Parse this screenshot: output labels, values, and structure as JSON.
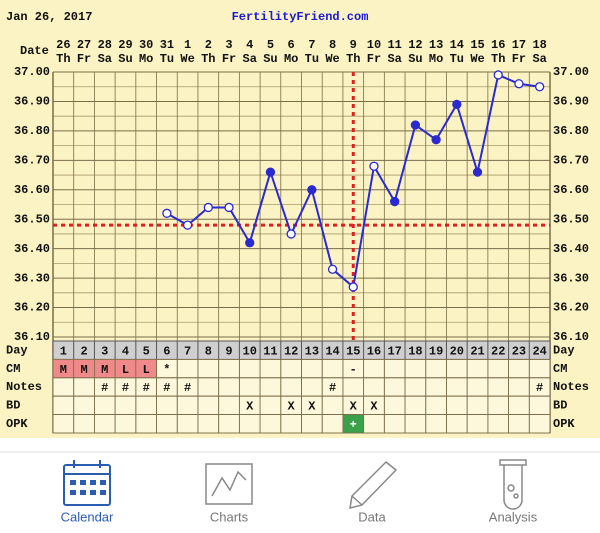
{
  "chart_data": {
    "type": "line",
    "title": "Jan 26, 2017",
    "subtitle": "FertilityFriend.com",
    "date_label": "Date",
    "day_label": "Day",
    "dates": [
      "26",
      "27",
      "28",
      "29",
      "30",
      "31",
      "1",
      "2",
      "3",
      "4",
      "5",
      "6",
      "7",
      "8",
      "9",
      "10",
      "11",
      "12",
      "13",
      "14",
      "15",
      "16",
      "17",
      "18"
    ],
    "weekdays": [
      "Th",
      "Fr",
      "Sa",
      "Su",
      "Mo",
      "Tu",
      "We",
      "Th",
      "Fr",
      "Sa",
      "Su",
      "Mo",
      "Tu",
      "We",
      "Th",
      "Fr",
      "Sa",
      "Su",
      "Mo",
      "Tu",
      "We",
      "Th",
      "Fr",
      "Sa"
    ],
    "categories": [
      1,
      2,
      3,
      4,
      5,
      6,
      7,
      8,
      9,
      10,
      11,
      12,
      13,
      14,
      15,
      16,
      17,
      18,
      19,
      20,
      21,
      22,
      23,
      24
    ],
    "series": [
      {
        "color": "#2a2ad0",
        "values": [
          null,
          null,
          null,
          null,
          null,
          36.52,
          36.48,
          36.54,
          36.54,
          36.42,
          36.66,
          36.45,
          36.6,
          36.33,
          36.27,
          36.68,
          36.56,
          36.82,
          36.77,
          36.89,
          36.66,
          36.99,
          36.96,
          36.95
        ],
        "open_markers": [
          null,
          null,
          null,
          null,
          null,
          true,
          true,
          true,
          true,
          false,
          false,
          true,
          false,
          true,
          true,
          true,
          false,
          false,
          false,
          false,
          false,
          true,
          true,
          true
        ]
      }
    ],
    "coverline": 36.48,
    "ovulation_day": 15,
    "marker_line_color": "#e02020",
    "ylim": [
      36.1,
      37.0
    ],
    "yticks": [
      {
        "value": 36.1,
        "label": "36.10"
      },
      {
        "value": 36.2,
        "label": "36.20"
      },
      {
        "value": 36.3,
        "label": "36.30"
      },
      {
        "value": 36.4,
        "label": "36.40"
      },
      {
        "value": 36.5,
        "label": "36.50"
      },
      {
        "value": 36.6,
        "label": "36.60"
      },
      {
        "value": 36.7,
        "label": "36.70"
      },
      {
        "value": 36.8,
        "label": "36.80"
      },
      {
        "value": 36.9,
        "label": "36.90"
      },
      {
        "value": 37.0,
        "label": "37.00"
      }
    ],
    "minor_yticks": [
      36.15,
      36.25,
      36.35,
      36.45,
      36.55,
      36.65,
      36.75,
      36.85,
      36.95
    ],
    "grid": true,
    "rows": [
      {
        "label": "CM",
        "cells": [
          "M",
          "M",
          "M",
          "L",
          "L",
          "*",
          null,
          null,
          null,
          null,
          null,
          null,
          null,
          null,
          "-",
          null,
          null,
          null,
          null,
          null,
          null,
          null,
          null,
          null
        ],
        "colors": [
          "#f08a8a",
          "#f08a8a",
          "#f08a8a",
          "#f08a8a",
          "#f08a8a",
          null,
          null,
          null,
          null,
          null,
          null,
          null,
          null,
          null,
          null,
          null,
          null,
          null,
          null,
          null,
          null,
          null,
          null,
          null
        ]
      },
      {
        "label": "Notes",
        "cells": [
          null,
          null,
          "#",
          "#",
          "#",
          "#",
          "#",
          null,
          null,
          null,
          null,
          null,
          null,
          "#",
          null,
          null,
          null,
          null,
          null,
          null,
          null,
          null,
          null,
          "#"
        ]
      },
      {
        "label": "BD",
        "cells": [
          null,
          null,
          null,
          null,
          null,
          null,
          null,
          null,
          null,
          "X",
          null,
          "X",
          "X",
          null,
          "X",
          "X",
          null,
          null,
          null,
          null,
          null,
          null,
          null,
          null
        ]
      },
      {
        "label": "OPK",
        "cells": [
          null,
          null,
          null,
          null,
          null,
          null,
          null,
          null,
          null,
          null,
          null,
          null,
          null,
          null,
          "+",
          null,
          null,
          null,
          null,
          null,
          null,
          null,
          null,
          null
        ],
        "colors": [
          null,
          null,
          null,
          null,
          null,
          null,
          null,
          null,
          null,
          null,
          null,
          null,
          null,
          null,
          "#3aa04a",
          null,
          null,
          null,
          null,
          null,
          null,
          null,
          null,
          null
        ]
      }
    ]
  },
  "nav": {
    "items": [
      {
        "label": "Calendar",
        "active": true
      },
      {
        "label": "Charts",
        "active": false
      },
      {
        "label": "Data",
        "active": false
      },
      {
        "label": "Analysis",
        "active": false
      }
    ]
  }
}
